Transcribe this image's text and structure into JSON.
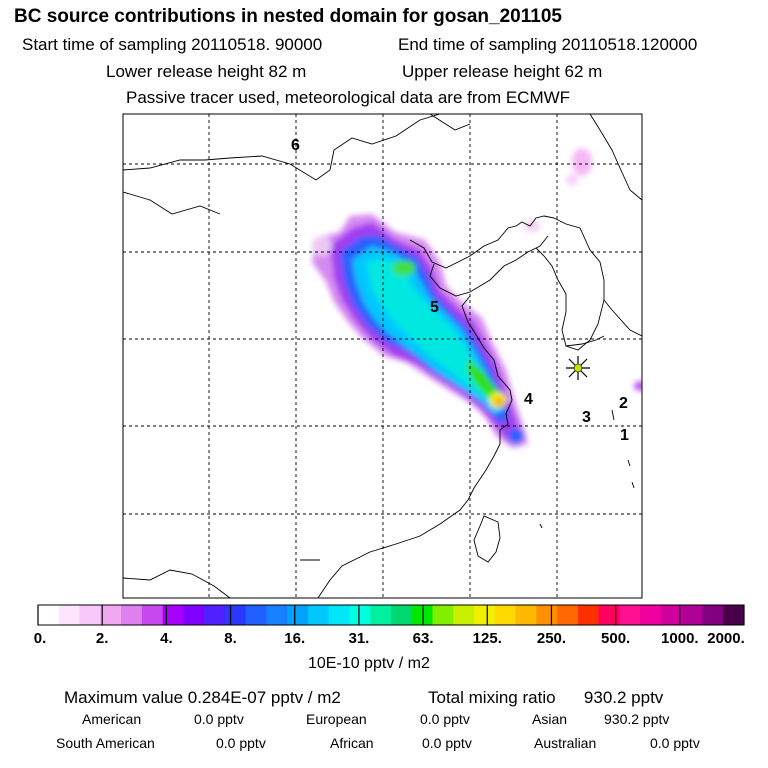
{
  "header": {
    "title": "BC  source contributions in nested domain for gosan_201105",
    "start_label": "Start time of sampling 20110518. 90000",
    "end_label": "End time of sampling 20110518.120000",
    "lower_label": "Lower release height   82 m",
    "upper_label": "Upper release height   62 m",
    "info": "Passive tracer used, meteorological data are from ECMWF"
  },
  "region_labels": [
    "6",
    "5",
    "4",
    "3",
    "2",
    "1"
  ],
  "colorbar": {
    "unit": "10E-10 pptv / m2",
    "ticks": [
      "0.",
      "2.",
      "4.",
      "8.",
      "16.",
      "31.",
      "63.",
      "125.",
      "250.",
      "500.",
      "1000.",
      "2000."
    ],
    "colors": [
      "#ffffff",
      "#fde6fd",
      "#f8c8f8",
      "#f0a8f0",
      "#e080f0",
      "#c848f0",
      "#a800ff",
      "#8000ff",
      "#5020ff",
      "#2838ff",
      "#2060ff",
      "#1880ff",
      "#00a0ff",
      "#00c8ff",
      "#00e8f8",
      "#00ffe0",
      "#00f0a0",
      "#00d870",
      "#00e800",
      "#80f000",
      "#c8f000",
      "#f0f000",
      "#ffd800",
      "#ffb800",
      "#ff9000",
      "#ff6800",
      "#ff3000",
      "#ff0060",
      "#ff1090",
      "#f000a0",
      "#d000a0",
      "#b00098",
      "#800080",
      "#480048"
    ]
  },
  "summary": {
    "max_label": "Maximum value  0.284E-07 pptv / m2",
    "total_label": "Total mixing ratio",
    "total_value": "930.2 pptv",
    "sources": [
      {
        "name": "American",
        "value": "0.0 pptv"
      },
      {
        "name": "European",
        "value": "0.0 pptv"
      },
      {
        "name": "Asian",
        "value": "930.2 pptv"
      },
      {
        "name": "South American",
        "value": "0.0 pptv"
      },
      {
        "name": "African",
        "value": "0.0 pptv"
      },
      {
        "name": "Australian",
        "value": "0.0 pptv"
      }
    ]
  },
  "chart_data": {
    "type": "heatmap",
    "title": "BC  source contributions in nested domain for gosan_201105",
    "colorbar_unit": "10E-10 pptv / m2",
    "colorbar_ticks": [
      0,
      2,
      4,
      8,
      16,
      31,
      63,
      125,
      250,
      500,
      1000,
      2000
    ],
    "maximum_value": "0.284E-07 pptv / m2",
    "total_mixing_ratio_pptv": 930.2,
    "receptor": "gosan",
    "grid": true
  }
}
